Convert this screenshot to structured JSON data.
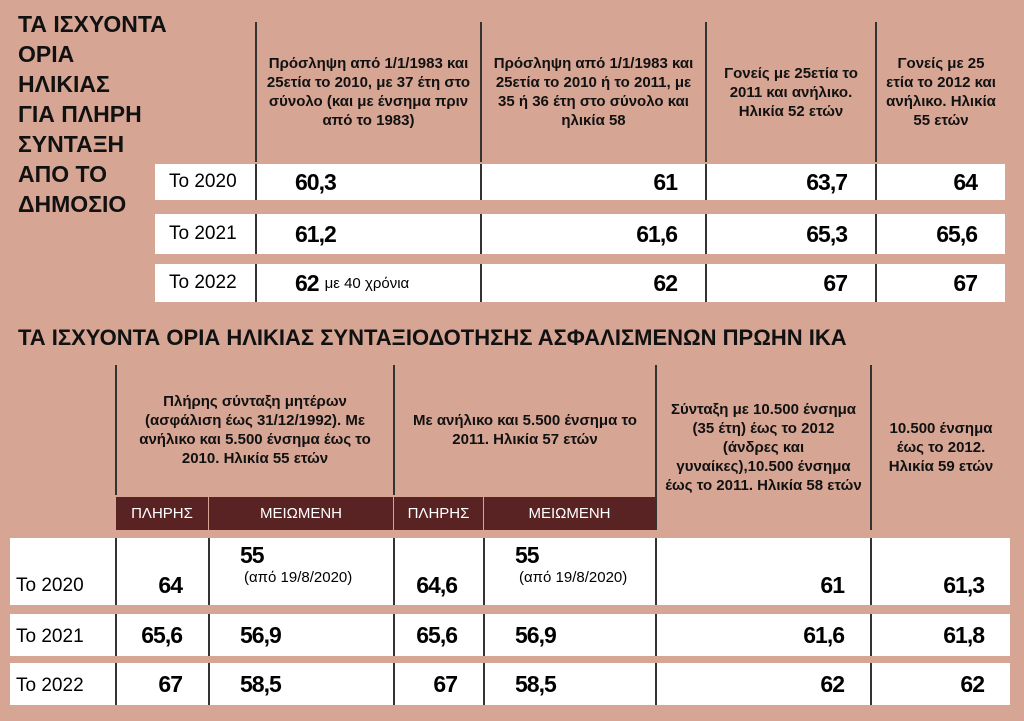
{
  "table1": {
    "title_lines": [
      "ΤΑ ΙΣΧΥΟΝΤΑ",
      "ΟΡΙΑ",
      "ΗΛΙΚΙΑΣ",
      "ΓΙΑ ΠΛΗΡΗ",
      "ΣΥΝΤΑΞΗ",
      "ΑΠΟ ΤΟ",
      "ΔΗΜΟΣΙΟ"
    ],
    "headers": [
      "Πρόσληψη από 1/1/1983 και 25ετία το 2010, με 37 έτη στο σύνολο (και με ένσημα πριν από το 1983)",
      "Πρόσληψη από 1/1/1983 και 25ετία το 2010 ή το 2011, με 35 ή 36 έτη στο σύνολο και ηλικία 58",
      "Γονείς με 25ετία το 2011 και ανήλικο. Ηλικία 52 ετών",
      "Γονείς με 25 ετία το 2012 και ανήλικο. Ηλικία 55 ετών"
    ],
    "rows": [
      {
        "label": "Το 2020",
        "cells": [
          {
            "value": "60,3"
          },
          {
            "value": "61"
          },
          {
            "value": "63,7"
          },
          {
            "value": "64"
          }
        ]
      },
      {
        "label": "Το 2021",
        "cells": [
          {
            "value": "61,2"
          },
          {
            "value": "61,6"
          },
          {
            "value": "65,3"
          },
          {
            "value": "65,6"
          }
        ]
      },
      {
        "label": "Το 2022",
        "cells": [
          {
            "value": "62",
            "note": "με 40 χρόνια"
          },
          {
            "value": "62"
          },
          {
            "value": "67"
          },
          {
            "value": "67"
          }
        ]
      }
    ]
  },
  "table2": {
    "title": "ΤΑ ΙΣΧΥΟΝΤΑ ΟΡΙΑ ΗΛΙΚΙΑΣ ΣΥΝΤΑΞΙΟΔΟΤΗΣΗΣ ΑΣΦΑΛΙΣΜΕΝΩΝ ΠΡΩΗΝ ΙΚΑ",
    "headers": [
      {
        "text": "Πλήρης σύνταξη μητέρων (ασφάλιση έως 31/12/1992). Με ανήλικο και 5.500 ένσημα έως το 2010. Ηλικία 55 ετών",
        "subheaders": [
          "ΠΛΗΡΗΣ",
          "ΜΕΙΩΜΕΝΗ"
        ]
      },
      {
        "text": "Με ανήλικο και 5.500 ένσημα το 2011. Ηλικία 57 ετών",
        "subheaders": [
          "ΠΛΗΡΗΣ",
          "ΜΕΙΩΜΕΝΗ"
        ]
      },
      {
        "text": "Σύνταξη με 10.500 ένσημα (35 έτη) έως το 2012 (άνδρες και γυναίκες),10.500 ένσημα έως το 2011. Ηλικία 58 ετών"
      },
      {
        "text": "10.500 ένσημα έως το 2012. Ηλικία 59 ετών"
      }
    ],
    "rows": [
      {
        "label": "Το 2020",
        "cells": [
          {
            "value": "64"
          },
          {
            "value": "55",
            "note": "(από 19/8/2020)"
          },
          {
            "value": "64,6"
          },
          {
            "value": "55",
            "note": "(από 19/8/2020)"
          },
          {
            "value": "61"
          },
          {
            "value": "61,3"
          }
        ]
      },
      {
        "label": "Το 2021",
        "cells": [
          {
            "value": "65,6"
          },
          {
            "value": "56,9"
          },
          {
            "value": "65,6"
          },
          {
            "value": "56,9"
          },
          {
            "value": "61,6"
          },
          {
            "value": "61,8"
          }
        ]
      },
      {
        "label": "Το 2022",
        "cells": [
          {
            "value": "67"
          },
          {
            "value": "58,5"
          },
          {
            "value": "67"
          },
          {
            "value": "58,5"
          },
          {
            "value": "62"
          },
          {
            "value": "62"
          }
        ]
      }
    ]
  }
}
